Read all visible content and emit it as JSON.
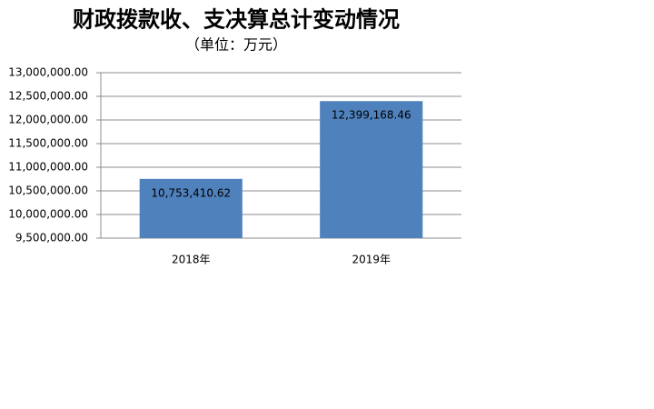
{
  "chart_data": {
    "type": "bar",
    "title": "财政拨款收、支决算总计变动情况",
    "subtitle": "（单位：万元）",
    "categories": [
      "2018年",
      "2019年"
    ],
    "values": [
      10753410.62,
      12399168.46
    ],
    "value_labels": [
      "10,753,410.62",
      "12,399,168.46"
    ],
    "color": "#4f81bd",
    "ylim": [
      9500000,
      13000000
    ],
    "yticks": [
      {
        "value": 9500000,
        "label": "9,500,000.00"
      },
      {
        "value": 10000000,
        "label": "10,000,000.00"
      },
      {
        "value": 10500000,
        "label": "10,500,000.00"
      },
      {
        "value": 11000000,
        "label": "11,000,000.00"
      },
      {
        "value": 11500000,
        "label": "11,500,000.00"
      },
      {
        "value": 12000000,
        "label": "12,000,000.00"
      },
      {
        "value": 12500000,
        "label": "12,500,000.00"
      },
      {
        "value": 13000000,
        "label": "13,000,000.00"
      }
    ],
    "grid": true
  }
}
